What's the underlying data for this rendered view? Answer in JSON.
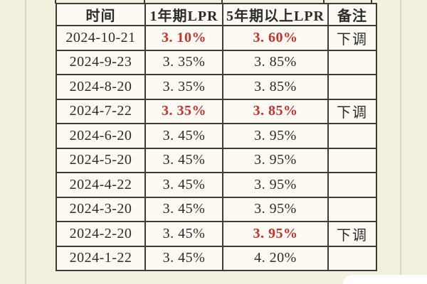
{
  "table": {
    "columns": [
      {
        "key": "date",
        "label": "时间"
      },
      {
        "key": "lpr1y",
        "label": "1年期LPR"
      },
      {
        "key": "lpr5y",
        "label": "5年期以上LPR"
      },
      {
        "key": "note",
        "label": "备注"
      }
    ],
    "rows": [
      {
        "date": "2024-10-21",
        "lpr1y": "3. 10%",
        "lpr1y_red": true,
        "lpr5y": "3. 60%",
        "lpr5y_red": true,
        "note": "下调"
      },
      {
        "date": "2024-9-23",
        "lpr1y": "3. 35%",
        "lpr1y_red": false,
        "lpr5y": "3. 85%",
        "lpr5y_red": false,
        "note": ""
      },
      {
        "date": "2024-8-20",
        "lpr1y": "3. 35%",
        "lpr1y_red": false,
        "lpr5y": "3. 85%",
        "lpr5y_red": false,
        "note": ""
      },
      {
        "date": "2024-7-22",
        "lpr1y": "3. 35%",
        "lpr1y_red": true,
        "lpr5y": "3. 85%",
        "lpr5y_red": true,
        "note": "下调"
      },
      {
        "date": "2024-6-20",
        "lpr1y": "3. 45%",
        "lpr1y_red": false,
        "lpr5y": "3. 95%",
        "lpr5y_red": false,
        "note": ""
      },
      {
        "date": "2024-5-20",
        "lpr1y": "3. 45%",
        "lpr1y_red": false,
        "lpr5y": "3. 95%",
        "lpr5y_red": false,
        "note": ""
      },
      {
        "date": "2024-4-22",
        "lpr1y": "3. 45%",
        "lpr1y_red": false,
        "lpr5y": "3. 95%",
        "lpr5y_red": false,
        "note": ""
      },
      {
        "date": "2024-3-20",
        "lpr1y": "3. 45%",
        "lpr1y_red": false,
        "lpr5y": "3. 95%",
        "lpr5y_red": false,
        "note": ""
      },
      {
        "date": "2024-2-20",
        "lpr1y": "3. 45%",
        "lpr1y_red": false,
        "lpr5y": "3. 95%",
        "lpr5y_red": true,
        "note": "下调"
      },
      {
        "date": "2024-1-22",
        "lpr1y": "3. 45%",
        "lpr1y_red": false,
        "lpr5y": "4. 20%",
        "lpr5y_red": false,
        "note": ""
      }
    ]
  },
  "colors": {
    "highlight_red": "#c8302a",
    "border": "#3d3c38",
    "page_bg": "#f4f0df",
    "cell_bg": "#fcfaf3"
  }
}
